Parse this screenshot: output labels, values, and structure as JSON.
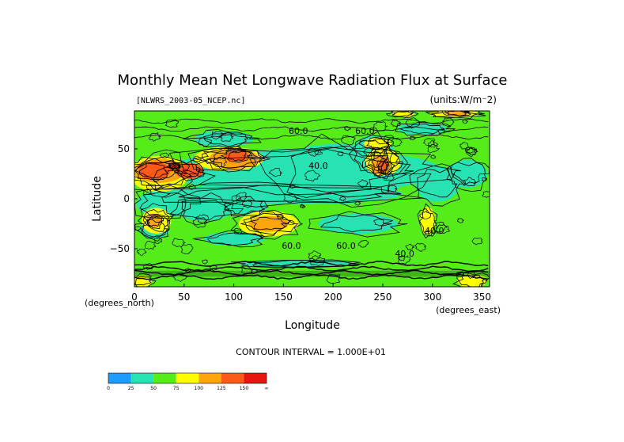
{
  "chart_data": {
    "type": "heatmap",
    "title": "Monthly Mean Net Longwave Radiation Flux at Surface",
    "file_label": "[NLWRS_2003-05_NCEP.nc]",
    "units_label": "(units:W/m⁻2)",
    "xlabel": "Longitude",
    "ylabel": "Latitude",
    "x_unit_note": "(degrees_east)",
    "y_unit_note": "(degrees_north)",
    "xlim": [
      0,
      357.5
    ],
    "ylim": [
      -88,
      88
    ],
    "x_ticks": [
      "0",
      "50",
      "100",
      "150",
      "200",
      "250",
      "300",
      "350"
    ],
    "y_ticks": [
      "50",
      "0",
      "−50"
    ],
    "contour_interval_label": "CONTOUR INTERVAL = 1.000E+01",
    "contour_labels": [
      {
        "text": "60.0",
        "lon": 165,
        "lat": 65
      },
      {
        "text": "60.0",
        "lon": 232,
        "lat": 65
      },
      {
        "text": "40.0",
        "lon": 185,
        "lat": 30
      },
      {
        "text": "60.0",
        "lon": 158,
        "lat": -50
      },
      {
        "text": "60.0",
        "lon": 213,
        "lat": -50
      },
      {
        "text": "40.0",
        "lon": 272,
        "lat": -58
      },
      {
        "text": "40.0",
        "lon": 302,
        "lat": -35
      }
    ],
    "colorbar": {
      "levels": [
        "0",
        "25",
        "50",
        "75",
        "100",
        "125",
        "150",
        "∞"
      ],
      "colors": [
        "#1e9bff",
        "#27e2b2",
        "#55ec19",
        "#fcfd00",
        "#fda50d",
        "#fb5a17",
        "#e8160e"
      ]
    }
  }
}
